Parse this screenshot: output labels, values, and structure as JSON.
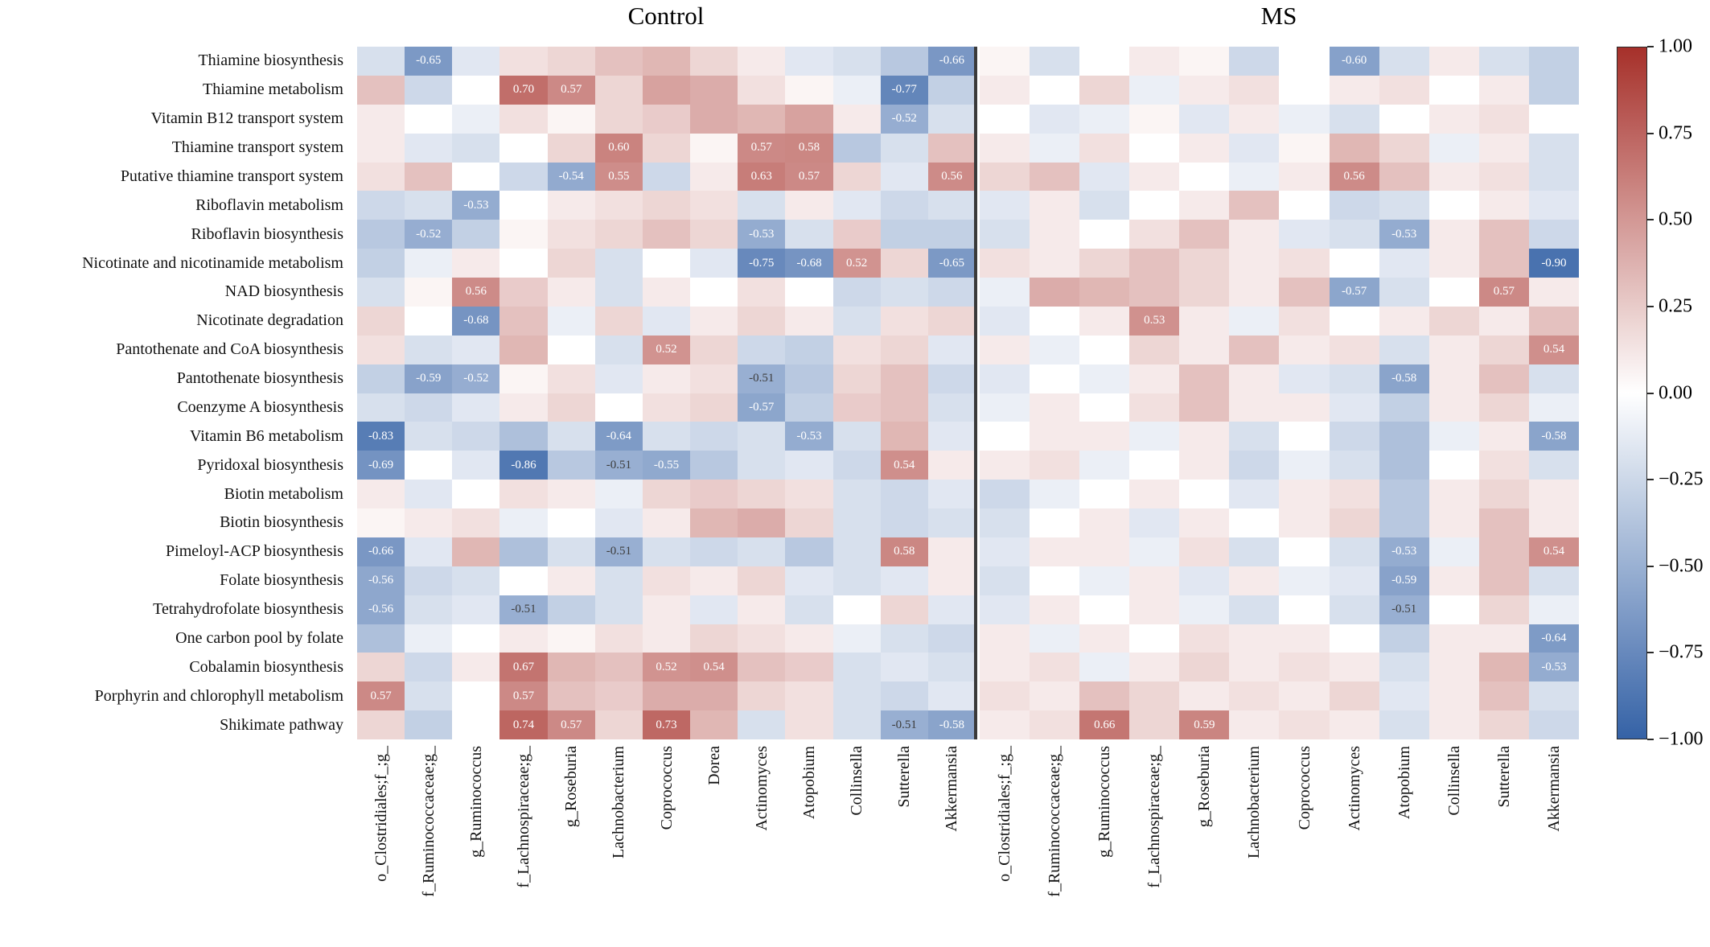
{
  "figure": {
    "colorbar_ticks": [
      "1.00",
      "0.75",
      "0.50",
      "0.25",
      "0.00",
      "−0.25",
      "−0.50",
      "−0.75",
      "−1.00"
    ]
  },
  "chart_data": {
    "type": "heatmap",
    "title": "",
    "legend_position": "right-colorbar",
    "colormap": {
      "negative": "#3562a6",
      "midpoint": "#ffffff",
      "positive": "#a6302a",
      "range": [
        -1,
        1
      ]
    },
    "rows": [
      "Thiamine biosynthesis",
      "Thiamine metabolism",
      "Vitamin B12 transport system",
      "Thiamine transport system",
      "Putative thiamine transport system",
      "Riboflavin metabolism",
      "Riboflavin biosynthesis",
      "Nicotinate and nicotinamide metabolism",
      "NAD biosynthesis",
      "Nicotinate degradation",
      "Pantothenate and CoA biosynthesis",
      "Pantothenate biosynthesis",
      "Coenzyme A biosynthesis",
      "Vitamin B6 metabolism",
      "Pyridoxal biosynthesis",
      "Biotin metabolism",
      "Biotin biosynthesis",
      "Pimeloyl-ACP biosynthesis",
      "Folate biosynthesis",
      "Tetrahydrofolate biosynthesis",
      "One carbon pool by folate",
      "Cobalamin biosynthesis",
      "Porphyrin and chlorophyll metabolism",
      "Shikimate pathway"
    ],
    "panels": [
      {
        "title": "Control",
        "columns": [
          "o_Clostridiales;f_;g_",
          "f_Ruminococcaceae;g_",
          "g_Ruminococcus",
          "f_Lachnospiraceae;g_",
          "g_Roseburia",
          "Lachnobacterium",
          "Coprococcus",
          "Dorea",
          "Actinomyces",
          "Atopobium",
          "Collinsella",
          "Sutterella",
          "Akkermansia"
        ],
        "values": [
          [
            -0.2,
            -0.65,
            -0.15,
            0.15,
            0.2,
            0.3,
            0.35,
            0.2,
            0.1,
            -0.15,
            -0.2,
            -0.35,
            -0.66
          ],
          [
            0.3,
            -0.25,
            0.0,
            0.7,
            0.57,
            0.2,
            0.45,
            0.4,
            0.15,
            0.05,
            -0.1,
            -0.77,
            -0.3
          ],
          [
            0.1,
            0.0,
            -0.1,
            0.15,
            0.05,
            0.2,
            0.25,
            0.4,
            0.35,
            0.45,
            0.1,
            -0.52,
            -0.2
          ],
          [
            0.1,
            -0.15,
            -0.2,
            0.0,
            0.2,
            0.6,
            0.2,
            0.05,
            0.57,
            0.58,
            -0.35,
            -0.2,
            0.3
          ],
          [
            0.15,
            0.3,
            0.0,
            -0.25,
            -0.54,
            0.55,
            -0.25,
            0.1,
            0.63,
            0.57,
            0.2,
            -0.15,
            0.56
          ],
          [
            -0.25,
            -0.2,
            -0.53,
            0.0,
            0.1,
            0.15,
            0.2,
            0.15,
            -0.2,
            0.1,
            -0.15,
            -0.25,
            -0.2
          ],
          [
            -0.35,
            -0.52,
            -0.3,
            0.05,
            0.15,
            0.2,
            0.3,
            0.2,
            -0.53,
            -0.2,
            0.25,
            -0.3,
            -0.3
          ],
          [
            -0.3,
            -0.1,
            0.1,
            0.0,
            0.2,
            -0.2,
            0.0,
            -0.15,
            -0.75,
            -0.68,
            0.52,
            0.2,
            -0.65
          ],
          [
            -0.2,
            0.05,
            0.56,
            0.25,
            0.1,
            -0.2,
            0.1,
            0.0,
            0.15,
            0.0,
            -0.25,
            -0.2,
            -0.25
          ],
          [
            0.2,
            0.0,
            -0.68,
            0.3,
            -0.1,
            0.2,
            -0.15,
            0.1,
            0.2,
            0.1,
            -0.2,
            0.15,
            0.2
          ],
          [
            0.15,
            -0.2,
            -0.15,
            0.35,
            0.0,
            -0.2,
            0.52,
            0.2,
            -0.25,
            -0.3,
            0.15,
            0.2,
            -0.15
          ],
          [
            -0.3,
            -0.59,
            -0.52,
            0.05,
            0.15,
            -0.15,
            0.1,
            0.15,
            -0.51,
            -0.35,
            0.2,
            0.3,
            -0.25
          ],
          [
            -0.2,
            -0.25,
            -0.15,
            0.1,
            0.2,
            0.0,
            0.15,
            0.2,
            -0.57,
            -0.3,
            0.25,
            0.3,
            -0.2
          ],
          [
            -0.83,
            -0.2,
            -0.25,
            -0.4,
            -0.2,
            -0.64,
            -0.2,
            -0.25,
            -0.2,
            -0.53,
            -0.2,
            0.35,
            -0.15
          ],
          [
            -0.69,
            0.0,
            -0.15,
            -0.86,
            -0.35,
            -0.51,
            -0.55,
            -0.35,
            -0.2,
            -0.15,
            -0.25,
            0.54,
            0.1
          ],
          [
            0.1,
            -0.15,
            0.0,
            0.15,
            0.1,
            -0.1,
            0.2,
            0.25,
            0.2,
            0.15,
            -0.2,
            -0.25,
            -0.15
          ],
          [
            0.05,
            0.1,
            0.15,
            -0.1,
            0.0,
            -0.15,
            0.1,
            0.35,
            0.4,
            0.2,
            -0.2,
            -0.25,
            -0.2
          ],
          [
            -0.66,
            -0.15,
            0.35,
            -0.4,
            -0.2,
            -0.51,
            -0.2,
            -0.25,
            -0.2,
            -0.35,
            -0.2,
            0.58,
            0.1
          ],
          [
            -0.56,
            -0.25,
            -0.2,
            0.0,
            0.1,
            -0.2,
            0.15,
            0.1,
            0.2,
            -0.15,
            -0.2,
            -0.15,
            0.1
          ],
          [
            -0.56,
            -0.2,
            -0.15,
            -0.51,
            -0.3,
            -0.2,
            0.1,
            -0.15,
            0.1,
            -0.2,
            0.0,
            0.2,
            -0.15
          ],
          [
            -0.4,
            -0.1,
            0.0,
            0.1,
            0.05,
            0.15,
            0.1,
            0.2,
            0.15,
            0.1,
            -0.1,
            -0.2,
            -0.25
          ],
          [
            0.2,
            -0.25,
            0.1,
            0.67,
            0.35,
            0.3,
            0.52,
            0.54,
            0.3,
            0.25,
            -0.2,
            -0.15,
            -0.2
          ],
          [
            0.57,
            -0.2,
            0.0,
            0.57,
            0.3,
            0.25,
            0.4,
            0.4,
            0.2,
            0.15,
            -0.2,
            -0.25,
            -0.15
          ],
          [
            0.2,
            -0.3,
            0.0,
            0.74,
            0.57,
            0.2,
            0.73,
            0.35,
            -0.2,
            0.15,
            -0.2,
            -0.51,
            -0.58
          ]
        ],
        "annotations": [
          [
            0,
            1,
            "-0.65"
          ],
          [
            0,
            12,
            "-0.66"
          ],
          [
            1,
            3,
            "0.70"
          ],
          [
            1,
            4,
            "0.57"
          ],
          [
            1,
            11,
            "-0.77"
          ],
          [
            2,
            11,
            "-0.52"
          ],
          [
            3,
            5,
            "0.60"
          ],
          [
            3,
            8,
            "0.57"
          ],
          [
            3,
            9,
            "0.58"
          ],
          [
            4,
            4,
            "-0.54"
          ],
          [
            4,
            5,
            "0.55"
          ],
          [
            4,
            8,
            "0.63"
          ],
          [
            4,
            9,
            "0.57"
          ],
          [
            4,
            12,
            "0.56"
          ],
          [
            5,
            2,
            "-0.53"
          ],
          [
            6,
            1,
            "-0.52"
          ],
          [
            6,
            8,
            "-0.53"
          ],
          [
            7,
            8,
            "-0.75"
          ],
          [
            7,
            9,
            "-0.68"
          ],
          [
            7,
            10,
            "0.52"
          ],
          [
            7,
            12,
            "-0.65"
          ],
          [
            8,
            2,
            "0.56"
          ],
          [
            9,
            2,
            "-0.68"
          ],
          [
            10,
            6,
            "0.52"
          ],
          [
            11,
            1,
            "-0.59"
          ],
          [
            11,
            2,
            "-0.52"
          ],
          [
            11,
            8,
            "-0.51"
          ],
          [
            12,
            8,
            "-0.57"
          ],
          [
            13,
            0,
            "-0.83"
          ],
          [
            13,
            5,
            "-0.64"
          ],
          [
            13,
            9,
            "-0.53"
          ],
          [
            14,
            0,
            "-0.69"
          ],
          [
            14,
            3,
            "-0.86"
          ],
          [
            14,
            5,
            "-0.51"
          ],
          [
            14,
            6,
            "-0.55"
          ],
          [
            14,
            11,
            "0.54"
          ],
          [
            17,
            0,
            "-0.66"
          ],
          [
            17,
            5,
            "-0.51"
          ],
          [
            17,
            11,
            "0.58"
          ],
          [
            18,
            0,
            "-0.56"
          ],
          [
            19,
            0,
            "-0.56"
          ],
          [
            19,
            3,
            "-0.51"
          ],
          [
            21,
            3,
            "0.67"
          ],
          [
            21,
            6,
            "0.52"
          ],
          [
            21,
            7,
            "0.54"
          ],
          [
            22,
            0,
            "0.57"
          ],
          [
            22,
            3,
            "0.57"
          ],
          [
            23,
            3,
            "0.74"
          ],
          [
            23,
            4,
            "0.57"
          ],
          [
            23,
            6,
            "0.73"
          ],
          [
            23,
            11,
            "-0.51"
          ],
          [
            23,
            12,
            "-0.58"
          ]
        ]
      },
      {
        "title": "MS",
        "columns": [
          "o_Clostridiales;f_;g_",
          "f_Ruminococcaceae;g_",
          "g_Ruminococcus",
          "f_Lachnospiraceae;g_",
          "g_Roseburia",
          "Lachnobacterium",
          "Coprococcus",
          "Actinomyces",
          "Atopobium",
          "Collinsella",
          "Sutterella",
          "Akkermansia"
        ],
        "values": [
          [
            0.05,
            -0.2,
            0.0,
            0.1,
            0.05,
            -0.25,
            0.0,
            -0.6,
            -0.2,
            0.1,
            -0.2,
            -0.3
          ],
          [
            0.1,
            0.0,
            0.2,
            -0.1,
            0.1,
            0.15,
            0.0,
            0.1,
            0.15,
            0.0,
            0.1,
            -0.3
          ],
          [
            0.0,
            -0.15,
            -0.1,
            0.05,
            -0.15,
            0.1,
            -0.1,
            -0.2,
            0.0,
            0.1,
            0.15,
            0.0
          ],
          [
            0.1,
            -0.1,
            0.15,
            0.0,
            0.1,
            -0.15,
            0.05,
            0.35,
            0.2,
            -0.1,
            0.1,
            -0.2
          ],
          [
            0.2,
            0.3,
            -0.15,
            0.1,
            0.0,
            -0.1,
            0.1,
            0.56,
            0.3,
            0.1,
            0.15,
            -0.2
          ],
          [
            -0.15,
            0.1,
            -0.2,
            0.0,
            0.1,
            0.3,
            0.0,
            -0.25,
            -0.2,
            0.0,
            0.1,
            -0.15
          ],
          [
            -0.2,
            0.1,
            0.0,
            0.15,
            0.3,
            0.1,
            -0.15,
            -0.2,
            -0.53,
            0.1,
            0.3,
            -0.25
          ],
          [
            0.15,
            0.1,
            0.2,
            0.3,
            0.2,
            0.1,
            0.15,
            0.0,
            -0.15,
            0.1,
            0.3,
            -0.9
          ],
          [
            -0.1,
            0.4,
            0.35,
            0.3,
            0.2,
            0.1,
            0.3,
            -0.57,
            -0.2,
            0.0,
            0.57,
            0.1
          ],
          [
            -0.15,
            0.0,
            0.1,
            0.53,
            0.1,
            -0.1,
            0.15,
            0.0,
            0.1,
            0.2,
            0.1,
            0.3
          ],
          [
            0.1,
            -0.1,
            0.0,
            0.2,
            0.1,
            0.3,
            0.1,
            0.15,
            -0.2,
            0.1,
            0.2,
            0.54
          ],
          [
            -0.15,
            0.0,
            -0.1,
            0.1,
            0.3,
            0.1,
            -0.15,
            -0.2,
            -0.58,
            0.1,
            0.3,
            -0.2
          ],
          [
            -0.1,
            0.1,
            0.0,
            0.15,
            0.3,
            0.1,
            0.1,
            -0.15,
            -0.3,
            0.1,
            0.2,
            -0.1
          ],
          [
            0.0,
            0.1,
            0.1,
            -0.1,
            0.1,
            -0.2,
            0.0,
            -0.25,
            -0.4,
            -0.1,
            0.1,
            -0.58
          ],
          [
            0.1,
            0.15,
            -0.1,
            0.0,
            0.1,
            -0.25,
            -0.1,
            -0.2,
            -0.4,
            0.0,
            0.15,
            -0.2
          ],
          [
            -0.25,
            -0.1,
            0.0,
            0.1,
            0.0,
            -0.15,
            0.1,
            0.15,
            -0.35,
            0.1,
            0.2,
            0.1
          ],
          [
            -0.2,
            0.0,
            0.1,
            -0.15,
            0.1,
            0.0,
            0.1,
            0.2,
            -0.35,
            0.1,
            0.3,
            0.1
          ],
          [
            -0.15,
            0.1,
            0.1,
            -0.1,
            0.15,
            -0.2,
            0.0,
            -0.2,
            -0.53,
            -0.1,
            0.3,
            0.54
          ],
          [
            -0.2,
            0.0,
            -0.1,
            0.1,
            -0.15,
            0.1,
            -0.1,
            -0.15,
            -0.59,
            0.1,
            0.3,
            -0.2
          ],
          [
            -0.15,
            0.1,
            0.0,
            0.1,
            -0.1,
            -0.2,
            0.0,
            -0.2,
            -0.51,
            0.0,
            0.2,
            -0.1
          ],
          [
            0.1,
            -0.1,
            0.1,
            0.0,
            0.15,
            0.1,
            0.1,
            0.0,
            -0.3,
            0.1,
            0.1,
            -0.64
          ],
          [
            0.1,
            0.15,
            -0.1,
            0.1,
            0.2,
            0.1,
            0.15,
            0.1,
            -0.2,
            0.1,
            0.35,
            -0.53
          ],
          [
            0.15,
            0.1,
            0.3,
            0.2,
            0.1,
            0.15,
            0.1,
            0.2,
            -0.15,
            0.1,
            0.3,
            -0.2
          ],
          [
            0.1,
            0.15,
            0.66,
            0.2,
            0.59,
            0.1,
            0.15,
            0.1,
            -0.2,
            0.1,
            0.2,
            -0.25
          ]
        ],
        "annotations": [
          [
            0,
            7,
            "-0.60"
          ],
          [
            4,
            7,
            "0.56"
          ],
          [
            6,
            8,
            "-0.53"
          ],
          [
            7,
            11,
            "-0.90"
          ],
          [
            8,
            7,
            "-0.57"
          ],
          [
            8,
            10,
            "0.57"
          ],
          [
            9,
            3,
            "0.53"
          ],
          [
            10,
            11,
            "0.54"
          ],
          [
            11,
            8,
            "-0.58"
          ],
          [
            13,
            11,
            "-0.58"
          ],
          [
            17,
            8,
            "-0.53"
          ],
          [
            17,
            11,
            "0.54"
          ],
          [
            18,
            8,
            "-0.59"
          ],
          [
            19,
            8,
            "-0.51"
          ],
          [
            20,
            11,
            "-0.64"
          ],
          [
            21,
            11,
            "-0.53"
          ],
          [
            23,
            2,
            "0.66"
          ],
          [
            23,
            4,
            "0.59"
          ]
        ]
      }
    ]
  }
}
